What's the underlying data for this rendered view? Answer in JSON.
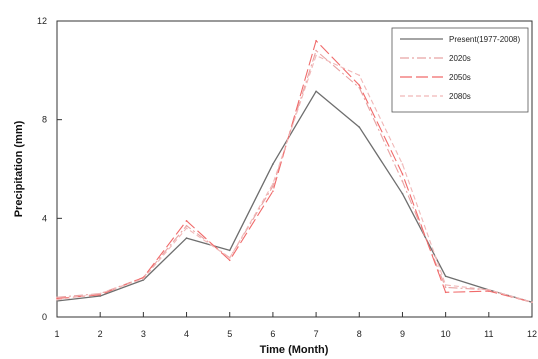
{
  "chart_data": {
    "type": "line",
    "xlabel": "Time (Month)",
    "ylabel": "Precipitation (mm)",
    "x": [
      1,
      2,
      3,
      4,
      5,
      6,
      7,
      8,
      9,
      10,
      11,
      12
    ],
    "xlim": [
      1,
      12
    ],
    "ylim": [
      0,
      12
    ],
    "x_ticks": [
      "1",
      "2",
      "3",
      "4",
      "5",
      "6",
      "7",
      "8",
      "9",
      "10",
      "11",
      "12"
    ],
    "y_ticks": [
      "0",
      "4",
      "8",
      "12"
    ],
    "grid": false,
    "legend_position": "top-right",
    "series": [
      {
        "name": "Present(1977-2008)",
        "color": "#6e6e6e",
        "dash": "solid",
        "values": [
          0.65,
          0.85,
          1.5,
          3.2,
          2.7,
          6.2,
          9.15,
          7.7,
          5.0,
          1.65,
          1.1,
          0.6
        ]
      },
      {
        "name": "2020s",
        "color": "#e8a3a3",
        "dash": "dashdot",
        "values": [
          0.8,
          0.95,
          1.6,
          3.7,
          2.4,
          5.3,
          10.8,
          9.3,
          5.5,
          1.2,
          1.1,
          0.6
        ]
      },
      {
        "name": "2050s",
        "color": "#f06a6a",
        "dash": "longdash",
        "values": [
          0.75,
          0.9,
          1.6,
          3.9,
          2.3,
          5.1,
          11.2,
          9.4,
          5.8,
          1.0,
          1.05,
          0.6
        ]
      },
      {
        "name": "2080s",
        "color": "#f0b7b7",
        "dash": "shortdash",
        "values": [
          0.7,
          0.95,
          1.55,
          3.6,
          2.4,
          5.4,
          10.6,
          9.8,
          6.2,
          1.3,
          1.1,
          0.6
        ]
      }
    ]
  }
}
